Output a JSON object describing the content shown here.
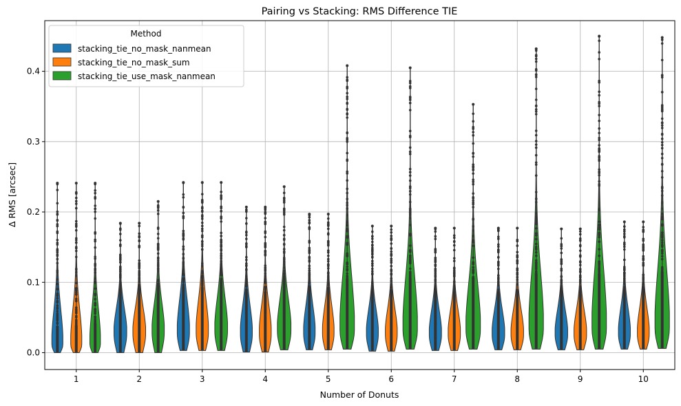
{
  "chart_data": {
    "type": "violin",
    "title": "Pairing vs Stacking: RMS Difference  TIE",
    "xlabel": "Number of Donuts",
    "ylabel": "Δ RMS [arcsec]",
    "categories": [
      "1",
      "2",
      "3",
      "4",
      "5",
      "6",
      "7",
      "8",
      "9",
      "10"
    ],
    "ylim": [
      -0.024,
      0.472
    ],
    "yticks": [
      "0.0",
      "0.1",
      "0.2",
      "0.3",
      "0.4"
    ],
    "ytick_values": [
      0.0,
      0.1,
      0.2,
      0.3,
      0.4
    ],
    "grid": true,
    "legend": {
      "title": "Method",
      "position": "top-left"
    },
    "series": [
      {
        "name": "stacking_tie_no_mask_nanmean",
        "color": "#1f77b4",
        "min": [
          0.0,
          0.0,
          0.003,
          0.001,
          0.004,
          0.002,
          0.003,
          0.004,
          0.004,
          0.005
        ],
        "median": [
          0.012,
          0.028,
          0.029,
          0.027,
          0.028,
          0.027,
          0.026,
          0.026,
          0.026,
          0.027
        ],
        "max": [
          0.241,
          0.184,
          0.242,
          0.207,
          0.197,
          0.18,
          0.177,
          0.177,
          0.176,
          0.186
        ],
        "width": [
          0.65,
          0.75,
          0.72,
          0.7,
          0.68,
          0.7,
          0.72,
          0.74,
          0.74,
          0.7
        ]
      },
      {
        "name": "stacking_tie_no_mask_sum",
        "color": "#ff7f0e",
        "min": [
          0.0,
          0.0,
          0.003,
          0.001,
          0.004,
          0.002,
          0.003,
          0.004,
          0.004,
          0.005
        ],
        "median": [
          0.012,
          0.028,
          0.029,
          0.027,
          0.028,
          0.027,
          0.026,
          0.026,
          0.026,
          0.027
        ],
        "max": [
          0.241,
          0.184,
          0.242,
          0.207,
          0.197,
          0.18,
          0.177,
          0.177,
          0.176,
          0.186
        ],
        "width": [
          0.65,
          0.75,
          0.72,
          0.7,
          0.68,
          0.7,
          0.72,
          0.74,
          0.74,
          0.7
        ]
      },
      {
        "name": "stacking_tie_use_mask_nanmean",
        "color": "#2ca02c",
        "min": [
          0.0,
          0.0,
          0.003,
          0.004,
          0.005,
          0.005,
          0.005,
          0.005,
          0.005,
          0.006
        ],
        "median": [
          0.013,
          0.03,
          0.032,
          0.032,
          0.033,
          0.033,
          0.033,
          0.035,
          0.035,
          0.036
        ],
        "max": [
          0.241,
          0.215,
          0.242,
          0.236,
          0.408,
          0.405,
          0.353,
          0.432,
          0.45,
          0.448
        ],
        "width": [
          0.62,
          0.72,
          0.75,
          0.8,
          0.85,
          0.85,
          0.85,
          0.85,
          0.85,
          0.85
        ]
      }
    ]
  }
}
